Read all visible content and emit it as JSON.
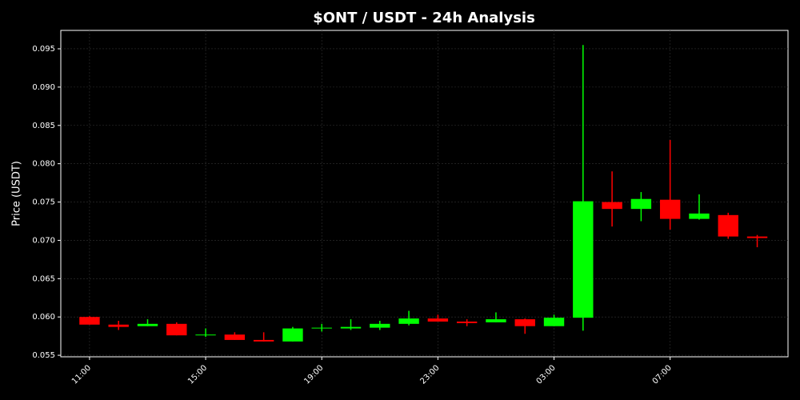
{
  "chart_data": {
    "type": "candlestick",
    "title": "$ONT / USDT - 24h Analysis",
    "y_label": "Price (USDT)",
    "categories": [
      "11:00",
      null,
      null,
      null,
      "15:00",
      null,
      null,
      null,
      "19:00",
      null,
      null,
      null,
      "23:00",
      null,
      null,
      null,
      "03:00",
      null,
      null,
      null,
      "07:00",
      null,
      null,
      null
    ],
    "open": [
      0.06,
      0.059,
      0.0588,
      0.0591,
      0.0576,
      0.0577,
      0.057,
      0.0568,
      0.0585,
      0.0585,
      0.0586,
      0.0591,
      0.0598,
      0.0594,
      0.0593,
      0.0597,
      0.0588,
      0.0599,
      0.075,
      0.0741,
      0.0753,
      0.0728,
      0.0733,
      0.0705
    ],
    "high": [
      0.0601,
      0.0595,
      0.0597,
      0.0593,
      0.0585,
      0.058,
      0.058,
      0.0587,
      0.0591,
      0.0597,
      0.0595,
      0.0608,
      0.0603,
      0.0597,
      0.0606,
      0.0598,
      0.0603,
      0.0955,
      0.079,
      0.0763,
      0.0831,
      0.076,
      0.0736,
      0.0707
    ],
    "low": [
      0.059,
      0.0583,
      0.0588,
      0.0576,
      0.0574,
      0.057,
      0.0568,
      0.0568,
      0.0581,
      0.0583,
      0.0583,
      0.0589,
      0.0594,
      0.0588,
      0.0593,
      0.0578,
      0.0588,
      0.0582,
      0.0718,
      0.0725,
      0.0714,
      0.0727,
      0.0702,
      0.0691
    ],
    "close": [
      0.059,
      0.0587,
      0.0591,
      0.0576,
      0.0577,
      0.057,
      0.0568,
      0.0585,
      0.0586,
      0.0587,
      0.0591,
      0.0598,
      0.0594,
      0.0592,
      0.0597,
      0.0588,
      0.0599,
      0.0751,
      0.0741,
      0.0754,
      0.0728,
      0.0735,
      0.0705,
      0.0703
    ],
    "up_color": "#00ff00",
    "down_color": "#ff0000",
    "ylim": [
      0.0548,
      0.0974
    ],
    "yticks": [
      0.055,
      {
        "value": 0.06,
        "label": "0.060"
      },
      0.065,
      {
        "value": 0.07,
        "label": "0.070"
      },
      0.075,
      {
        "value": 0.08,
        "label": "0.080"
      },
      0.085,
      {
        "value": 0.09,
        "label": "0.090"
      },
      0.095
    ],
    "grid": true
  }
}
